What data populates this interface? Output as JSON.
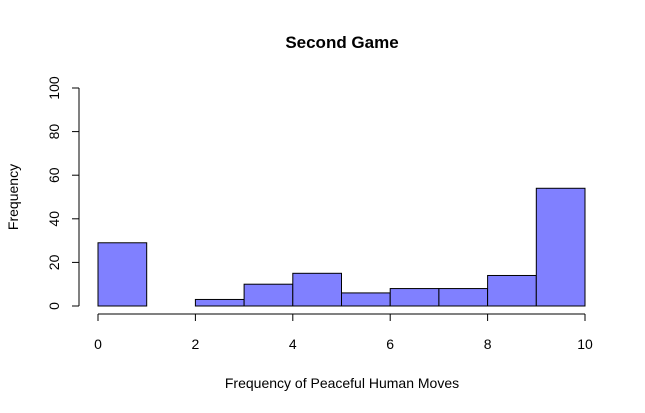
{
  "chart_data": {
    "type": "bar",
    "title": "Second Game",
    "xlabel": "Frequency of Peaceful Human Moves",
    "ylabel": "Frequency",
    "bin_edges": [
      0,
      1,
      2,
      3,
      4,
      5,
      6,
      7,
      8,
      9,
      10
    ],
    "values": [
      29,
      0,
      3,
      10,
      15,
      6,
      8,
      8,
      14,
      54
    ],
    "xlim": [
      0,
      10
    ],
    "ylim": [
      0,
      100
    ],
    "xticks": [
      "0",
      "2",
      "4",
      "6",
      "8",
      "10"
    ],
    "yticks": [
      "0",
      "20",
      "40",
      "60",
      "80",
      "100"
    ],
    "bar_color": "#8080ff",
    "grid": false
  }
}
